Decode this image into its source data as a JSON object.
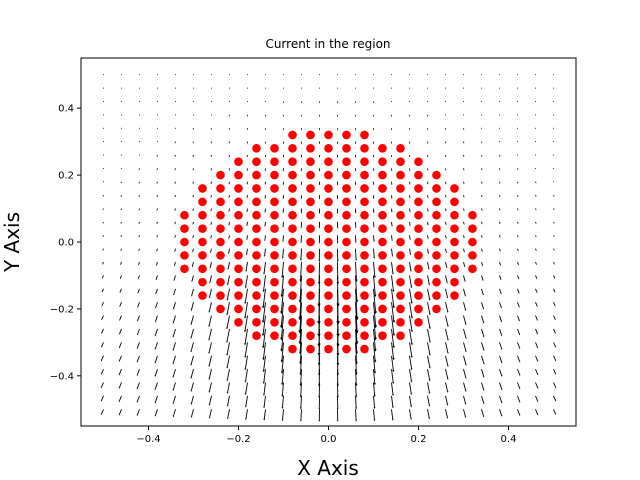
{
  "chart_data": {
    "type": "scatter",
    "title": "Current in the region",
    "xlabel": "X Axis",
    "ylabel": "Y Axis",
    "xlim": [
      -0.55,
      0.55
    ],
    "ylim": [
      -0.55,
      0.55
    ],
    "x_ticks": [
      -0.4,
      -0.2,
      0.0,
      0.2,
      0.4
    ],
    "y_ticks": [
      -0.4,
      -0.2,
      0.0,
      0.2,
      0.4
    ],
    "x_tick_labels": [
      "−0.4",
      "−0.2",
      "0.0",
      "0.2",
      "0.4"
    ],
    "y_tick_labels": [
      "−0.4",
      "−0.2",
      "0.0",
      "0.2",
      "0.4"
    ],
    "grid": false,
    "point_color": "#ff0000",
    "arrow_color": "#000000",
    "point_region": {
      "shape": "rows",
      "grid_step": 0.04,
      "rows": [
        {
          "y": 0.32,
          "x_min": -0.08,
          "x_max": 0.08
        },
        {
          "y": 0.28,
          "x_min": -0.16,
          "x_max": 0.16
        },
        {
          "y": 0.24,
          "x_min": -0.2,
          "x_max": 0.2
        },
        {
          "y": 0.2,
          "x_min": -0.24,
          "x_max": 0.24
        },
        {
          "y": 0.16,
          "x_min": -0.28,
          "x_max": 0.28
        },
        {
          "y": 0.12,
          "x_min": -0.28,
          "x_max": 0.28
        },
        {
          "y": 0.08,
          "x_min": -0.32,
          "x_max": 0.32
        },
        {
          "y": 0.04,
          "x_min": -0.32,
          "x_max": 0.32
        },
        {
          "y": 0.0,
          "x_min": -0.32,
          "x_max": 0.32
        },
        {
          "y": -0.04,
          "x_min": -0.32,
          "x_max": 0.32
        },
        {
          "y": -0.08,
          "x_min": -0.32,
          "x_max": 0.32
        },
        {
          "y": -0.12,
          "x_min": -0.28,
          "x_max": 0.28
        },
        {
          "y": -0.16,
          "x_min": -0.28,
          "x_max": 0.28
        },
        {
          "y": -0.2,
          "x_min": -0.24,
          "x_max": 0.24
        },
        {
          "y": -0.24,
          "x_min": -0.2,
          "x_max": 0.2
        },
        {
          "y": -0.28,
          "x_min": -0.16,
          "x_max": 0.16
        },
        {
          "y": -0.32,
          "x_min": -0.08,
          "x_max": 0.08
        }
      ]
    },
    "quiver": {
      "x_range": [
        -0.5,
        0.5
      ],
      "y_range": [
        -0.5,
        0.5
      ],
      "step": 0.04,
      "direction": "mostly downward, diverging from the region, largest below it"
    }
  }
}
